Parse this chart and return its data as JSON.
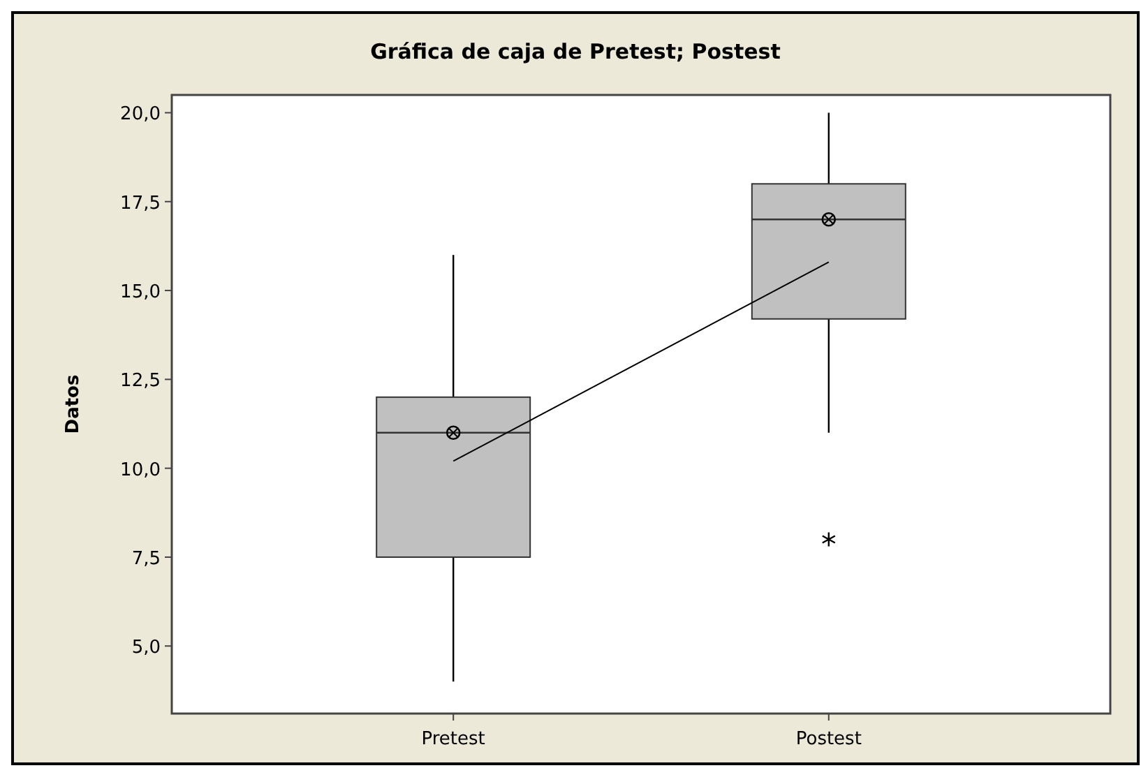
{
  "chart_data": {
    "type": "box",
    "title": "Gráfica de caja de Pretest; Postest",
    "ylabel": "Datos",
    "categories": [
      "Pretest",
      "Postest"
    ],
    "ylim": [
      3.1,
      20.5
    ],
    "yticks": [
      {
        "value": 5,
        "label": "5,0"
      },
      {
        "value": 7.5,
        "label": "7,5"
      },
      {
        "value": 10,
        "label": "10,0"
      },
      {
        "value": 12.5,
        "label": "12,5"
      },
      {
        "value": 15,
        "label": "15,0"
      },
      {
        "value": 17.5,
        "label": "17,5"
      },
      {
        "value": 20,
        "label": "20,0"
      }
    ],
    "grid": false,
    "series": [
      {
        "color": "#c0c0c0",
        "boxes": [
          {
            "low": 4,
            "q1": 7.5,
            "median": 11,
            "q3": 12,
            "high": 16
          },
          {
            "low": 11,
            "q1": 14.2,
            "median": 17,
            "q3": 18,
            "high": 20,
            "outliers": [
              8
            ]
          }
        ]
      },
      {
        "type": "line",
        "color": "#000000",
        "values": [
          10.2,
          15.8
        ],
        "marker": "none"
      },
      {
        "type": "scatter",
        "color": "#000000",
        "values": [
          11,
          17
        ],
        "marker": "circle"
      }
    ]
  }
}
